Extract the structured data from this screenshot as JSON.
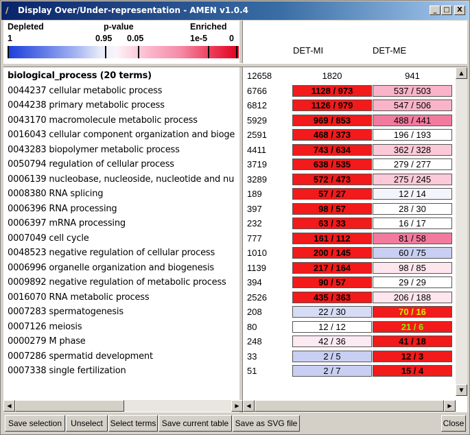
{
  "window": {
    "title": "Display Over/Under-representation - AMEN v1.0.4",
    "controls": [
      "_",
      "□",
      "X"
    ]
  },
  "legend": {
    "depleted_label": "Depleted",
    "pvalue_label": "p-value",
    "enriched_label": "Enriched",
    "tick_1": "1",
    "tick_095": "0.95",
    "tick_005": "0.05",
    "tick_1e5": "1e-5",
    "tick_0": "0",
    "gradient_colors": [
      "#1c3cdc",
      "#fde6ee",
      "#e3001c"
    ]
  },
  "columns": [
    "DET-MI",
    "DET-ME"
  ],
  "header_row": {
    "label": "biological_process (20 terms)",
    "count": "12658",
    "mi": "1820",
    "me": "941"
  },
  "rows": [
    {
      "term": "0044237 cellular metabolic process",
      "count": "6766",
      "mi": "1128 / 973",
      "mi_color": "#f21a1a",
      "mi_bold": true,
      "me": "537 / 503",
      "me_color": "#f9b4c9",
      "me_bold": false
    },
    {
      "term": "0044238 primary metabolic process",
      "count": "6812",
      "mi": "1126 / 979",
      "mi_color": "#f21a1a",
      "mi_bold": true,
      "me": "547 / 506",
      "me_color": "#f9b4c9",
      "me_bold": false
    },
    {
      "term": "0043170 macromolecule metabolic process",
      "count": "5929",
      "mi": "969 / 853",
      "mi_color": "#f21a1a",
      "mi_bold": true,
      "me": "488 / 441",
      "me_color": "#f27a9e",
      "me_bold": false
    },
    {
      "term": "0016043 cellular component organization and bioge",
      "count": "2591",
      "mi": "468 / 373",
      "mi_color": "#f21a1a",
      "mi_bold": true,
      "me": "196 / 193",
      "me_color": "#ffffff",
      "me_bold": false
    },
    {
      "term": "0043283 biopolymer metabolic process",
      "count": "4411",
      "mi": "743 / 634",
      "mi_color": "#f21a1a",
      "mi_bold": true,
      "me": "362 / 328",
      "me_color": "#fbc9d8",
      "me_bold": false
    },
    {
      "term": "0050794 regulation of cellular process",
      "count": "3719",
      "mi": "638 / 535",
      "mi_color": "#f21a1a",
      "mi_bold": true,
      "me": "279 / 277",
      "me_color": "#ffffff",
      "me_bold": false
    },
    {
      "term": "0006139 nucleobase, nucleoside, nucleotide and nu",
      "count": "3289",
      "mi": "572 / 473",
      "mi_color": "#f21a1a",
      "mi_bold": true,
      "me": "275 / 245",
      "me_color": "#fbc9d8",
      "me_bold": false
    },
    {
      "term": "0008380 RNA splicing",
      "count": "189",
      "mi": "57 / 27",
      "mi_color": "#f21a1a",
      "mi_bold": true,
      "me": "12 / 14",
      "me_color": "#f4f4fc",
      "me_bold": false
    },
    {
      "term": "0006396 RNA processing",
      "count": "397",
      "mi": "98 / 57",
      "mi_color": "#f21a1a",
      "mi_bold": true,
      "me": "28 / 30",
      "me_color": "#ffffff",
      "me_bold": false
    },
    {
      "term": "0006397 mRNA processing",
      "count": "232",
      "mi": "63 / 33",
      "mi_color": "#f21a1a",
      "mi_bold": true,
      "me": "16 / 17",
      "me_color": "#ffffff",
      "me_bold": false
    },
    {
      "term": "0007049 cell cycle",
      "count": "777",
      "mi": "161 / 112",
      "mi_color": "#f21a1a",
      "mi_bold": true,
      "me": "81 / 58",
      "me_color": "#f27a9e",
      "me_bold": false
    },
    {
      "term": "0048523 negative regulation of cellular process",
      "count": "1010",
      "mi": "200 / 145",
      "mi_color": "#f21a1a",
      "mi_bold": true,
      "me": "60 / 75",
      "me_color": "#c9cff2",
      "me_bold": false
    },
    {
      "term": "0006996 organelle organization and biogenesis",
      "count": "1139",
      "mi": "217 / 164",
      "mi_color": "#f21a1a",
      "mi_bold": true,
      "me": "98 / 85",
      "me_color": "#fde6ee",
      "me_bold": false
    },
    {
      "term": "0009892 negative regulation of metabolic process",
      "count": "394",
      "mi": "90 / 57",
      "mi_color": "#f21a1a",
      "mi_bold": true,
      "me": "29 / 29",
      "me_color": "#ffffff",
      "me_bold": false
    },
    {
      "term": "0016070 RNA metabolic process",
      "count": "2526",
      "mi": "435 / 363",
      "mi_color": "#f21a1a",
      "mi_bold": true,
      "me": "206 / 188",
      "me_color": "#fde6ee",
      "me_bold": false
    },
    {
      "term": "0007283 spermatogenesis",
      "count": "208",
      "mi": "22 / 30",
      "mi_color": "#d7dcf5",
      "mi_bold": false,
      "me": "70 / 16",
      "me_color": "#f21a1a",
      "me_bold": true,
      "me_text_color": "#d6f000"
    },
    {
      "term": "0007126 meiosis",
      "count": "80",
      "mi": "12 / 12",
      "mi_color": "#ffffff",
      "mi_bold": false,
      "me": "21 / 6",
      "me_color": "#f21a1a",
      "me_bold": true,
      "me_text_color": "#8cf000"
    },
    {
      "term": "0000279 M phase",
      "count": "248",
      "mi": "42 / 36",
      "mi_color": "#fbeaf2",
      "mi_bold": false,
      "me": "41 / 18",
      "me_color": "#f21a1a",
      "me_bold": true
    },
    {
      "term": "0007286 spermatid development",
      "count": "33",
      "mi": "2 / 5",
      "mi_color": "#c9cff2",
      "mi_bold": false,
      "me": "12 / 3",
      "me_color": "#f21a1a",
      "me_bold": true
    },
    {
      "term": "0007338 single fertilization",
      "count": "51",
      "mi": "2 / 7",
      "mi_color": "#c9cff2",
      "mi_bold": false,
      "me": "15 / 4",
      "me_color": "#f21a1a",
      "me_bold": true
    }
  ],
  "buttons": {
    "save_selection": "Save selection",
    "unselect": "Unselect",
    "select_terms": "Select terms",
    "save_current_table": "Save current table",
    "save_svg": "Save as SVG file",
    "close": "Close"
  }
}
